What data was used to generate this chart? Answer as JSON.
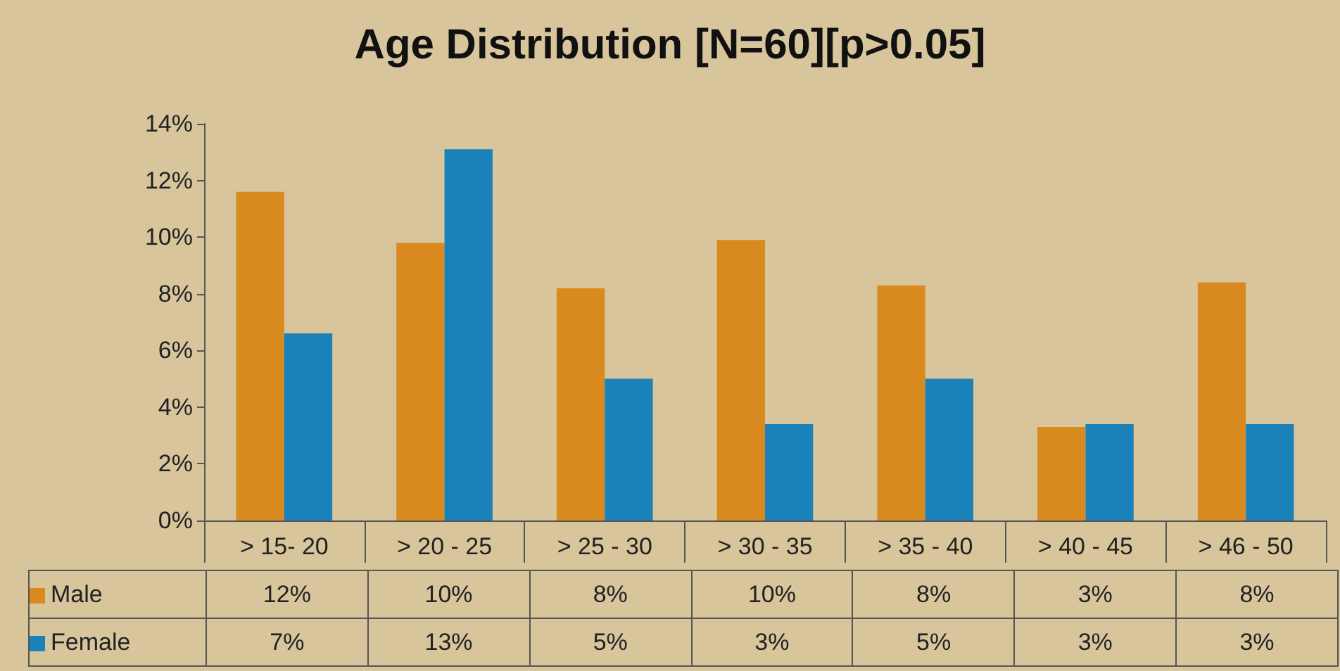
{
  "chart_data": {
    "type": "bar",
    "title": "Age Distribution [N=60][p>0.05]",
    "categories": [
      "> 15- 20",
      "> 20 - 25",
      "> 25 - 30",
      "> 30 - 35",
      "> 35 - 40",
      "> 40 - 45",
      "> 46 - 50"
    ],
    "series": [
      {
        "name": "Male",
        "color": "#d98a1e",
        "values": [
          11.6,
          9.8,
          8.2,
          9.9,
          8.3,
          3.3,
          8.4
        ],
        "value_labels": [
          "12%",
          "10%",
          "8%",
          "10%",
          "8%",
          "3%",
          "8%"
        ]
      },
      {
        "name": "Female",
        "color": "#1a82b8",
        "values": [
          6.6,
          13.1,
          5.0,
          3.4,
          5.0,
          3.4,
          3.4
        ],
        "value_labels": [
          "7%",
          "13%",
          "5%",
          "3%",
          "5%",
          "3%",
          "3%"
        ]
      }
    ],
    "ylim": [
      0,
      14
    ],
    "yticks": [
      {
        "value": 0,
        "label": "0%"
      },
      {
        "value": 2,
        "label": "2%"
      },
      {
        "value": 4,
        "label": "4%"
      },
      {
        "value": 6,
        "label": "6%"
      },
      {
        "value": 8,
        "label": "8%"
      },
      {
        "value": 10,
        "label": "10%"
      },
      {
        "value": 12,
        "label": "12%"
      },
      {
        "value": 14,
        "label": "14%"
      }
    ],
    "grid": false,
    "legend": "bottom left"
  }
}
